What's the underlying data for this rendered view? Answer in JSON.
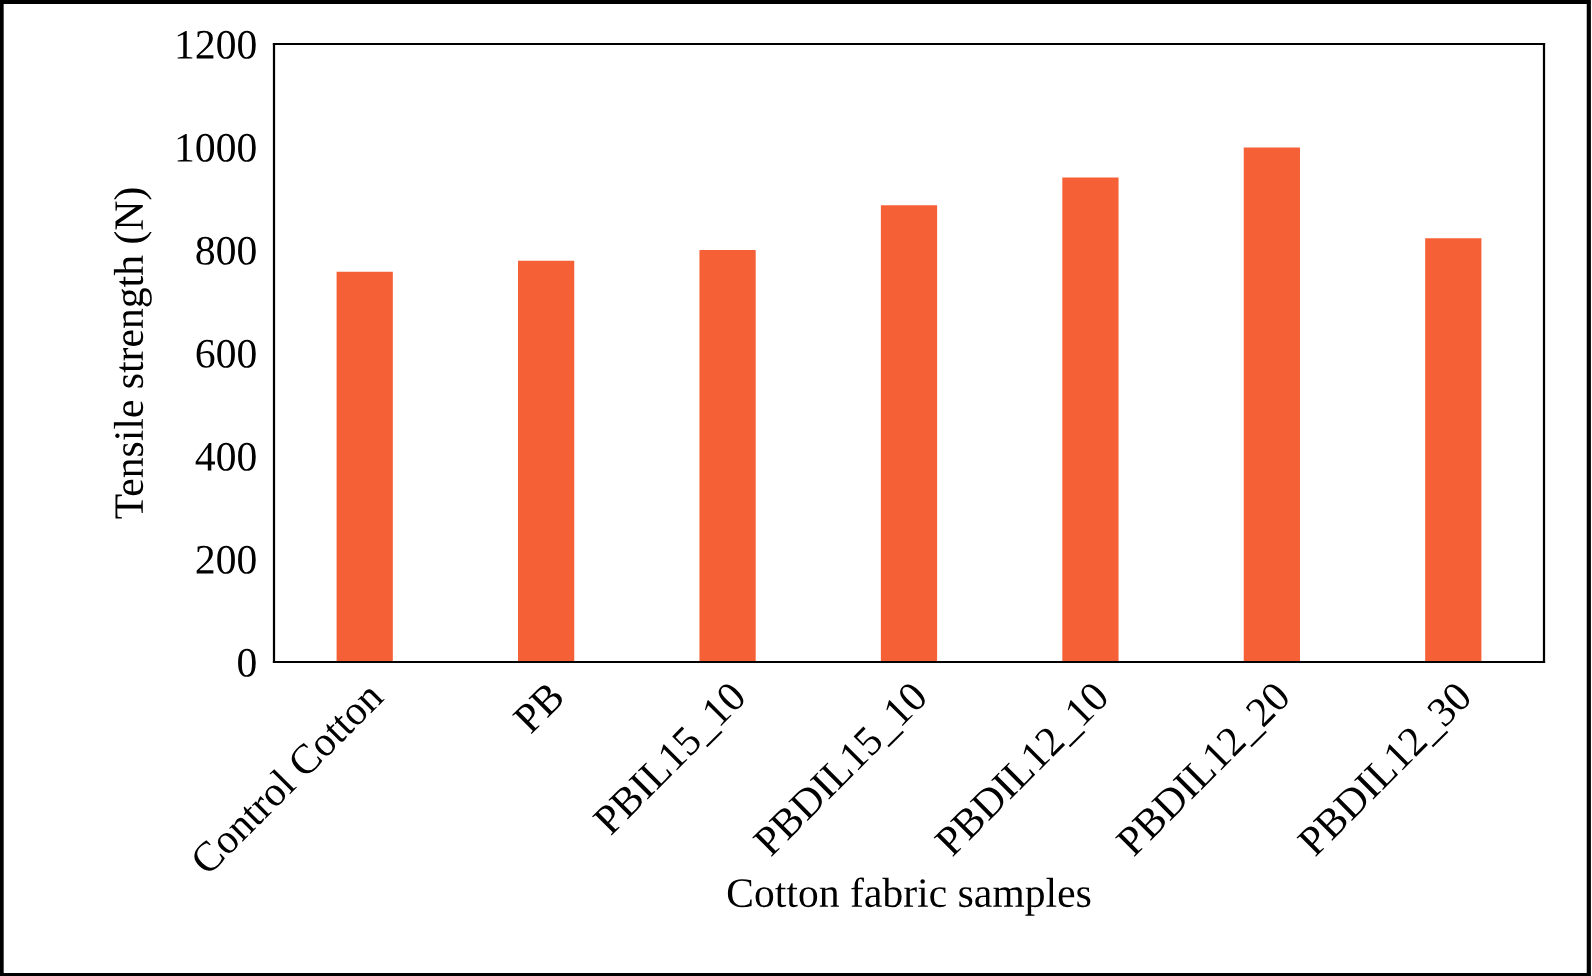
{
  "chart_data": {
    "type": "bar",
    "xlabel": "Cotton fabric samples",
    "ylabel": "Tensile strength (N)",
    "categories": [
      "Control Cotton",
      "PB",
      "PBIL15_10",
      "PBDIL15_10",
      "PBDIL12_10",
      "PBDIL12_20",
      "PBDIL12_30"
    ],
    "values": [
      758,
      779,
      800,
      887,
      941,
      999,
      823
    ],
    "color": "#f56036",
    "ylim": [
      0,
      1200
    ],
    "yticks": [
      0,
      200,
      400,
      600,
      800,
      1000,
      1200
    ],
    "grid": false,
    "legend": false
  }
}
